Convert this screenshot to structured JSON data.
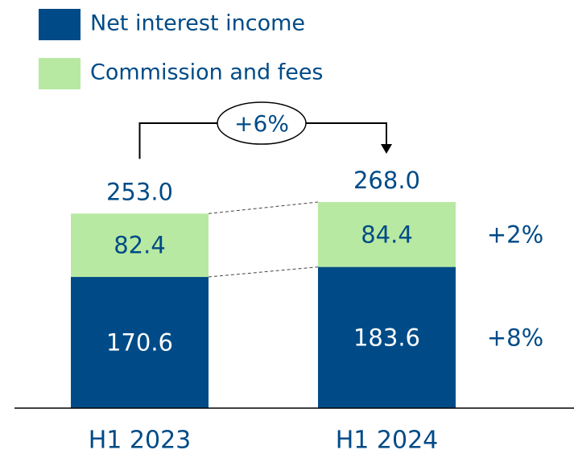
{
  "chart_data": {
    "type": "stacked_bar",
    "categories": [
      "H1 2023",
      "H1 2024"
    ],
    "series": [
      {
        "name": "Net interest income",
        "color": "#004b87",
        "values": [
          170.6,
          183.6
        ],
        "change": "+8%"
      },
      {
        "name": "Commission and fees",
        "color": "#b8e9a2",
        "values": [
          82.4,
          84.4
        ],
        "change": "+2%"
      }
    ],
    "totals": {
      "values": [
        253,
        268
      ],
      "value_labels": [
        "253.0",
        "268.0"
      ]
    },
    "total_change": "+6%",
    "legend": "top-left"
  }
}
